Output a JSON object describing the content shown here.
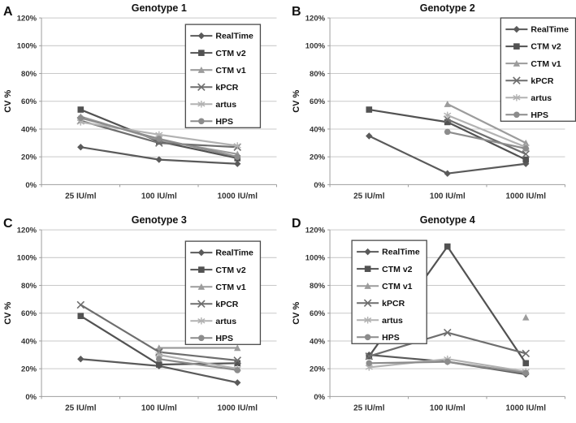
{
  "colors": {
    "background": "#ffffff",
    "gridline": "#c9c9c9",
    "axis": "#9e9e9e",
    "tick_text": "#333333",
    "title_text": "#111111",
    "legend_border": "#4a4a4a",
    "legend_background": "#ffffff"
  },
  "chart_data": [
    {
      "type": "line",
      "panel_label": "A",
      "title": "Genotype 1",
      "ylabel": "CV %",
      "ylim": [
        0,
        120
      ],
      "ytick_step": 20,
      "ytick_suffix": "%",
      "grid": true,
      "legend_position": "top-right",
      "categories": [
        "25 IU/ml",
        "100 IU/ml",
        "1000 IU/ml"
      ],
      "series": [
        {
          "name": "RealTime",
          "marker": "diamond",
          "color": "#5a5a5a",
          "values": [
            27,
            18,
            15
          ]
        },
        {
          "name": "CTM v2",
          "marker": "square",
          "color": "#525252",
          "values": [
            54,
            31,
            19
          ]
        },
        {
          "name": "CTM v1",
          "marker": "triangle",
          "color": "#9c9c9c",
          "values": [
            49,
            32,
            22
          ]
        },
        {
          "name": "kPCR",
          "marker": "x",
          "color": "#6e6e6e",
          "values": [
            46,
            30,
            27
          ]
        },
        {
          "name": "artus",
          "marker": "asterisk",
          "color": "#b2b2b2",
          "values": [
            45,
            36,
            28
          ]
        },
        {
          "name": "HPS",
          "marker": "circle",
          "color": "#8c8c8c",
          "values": [
            48,
            33,
            20
          ]
        }
      ]
    },
    {
      "type": "line",
      "panel_label": "B",
      "title": "Genotype 2",
      "ylabel": "CV %",
      "ylim": [
        0,
        120
      ],
      "ytick_step": 20,
      "ytick_suffix": "%",
      "grid": true,
      "legend_position": "top-right",
      "categories": [
        "25 IU/ml",
        "100 IU/ml",
        "1000 IU/ml"
      ],
      "series": [
        {
          "name": "RealTime",
          "marker": "diamond",
          "color": "#5a5a5a",
          "values": [
            35,
            8,
            15
          ]
        },
        {
          "name": "CTM v2",
          "marker": "square",
          "color": "#525252",
          "values": [
            54,
            45,
            18
          ]
        },
        {
          "name": "CTM v1",
          "marker": "triangle",
          "color": "#9c9c9c",
          "values": [
            null,
            58,
            30
          ]
        },
        {
          "name": "kPCR",
          "marker": "x",
          "color": "#6e6e6e",
          "values": [
            null,
            47,
            22
          ]
        },
        {
          "name": "artus",
          "marker": "asterisk",
          "color": "#b2b2b2",
          "values": [
            null,
            50,
            27
          ]
        },
        {
          "name": "HPS",
          "marker": "circle",
          "color": "#8c8c8c",
          "values": [
            null,
            38,
            26
          ]
        }
      ]
    },
    {
      "type": "line",
      "panel_label": "C",
      "title": "Genotype 3",
      "ylabel": "CV %",
      "ylim": [
        0,
        120
      ],
      "ytick_step": 20,
      "ytick_suffix": "%",
      "grid": true,
      "legend_position": "top-right",
      "categories": [
        "25 IU/ml",
        "100 IU/ml",
        "1000 IU/ml"
      ],
      "series": [
        {
          "name": "RealTime",
          "marker": "diamond",
          "color": "#5a5a5a",
          "values": [
            27,
            22,
            10
          ]
        },
        {
          "name": "CTM v2",
          "marker": "square",
          "color": "#525252",
          "values": [
            58,
            23,
            24
          ]
        },
        {
          "name": "CTM v1",
          "marker": "triangle",
          "color": "#9c9c9c",
          "values": [
            null,
            35,
            35
          ]
        },
        {
          "name": "kPCR",
          "marker": "x",
          "color": "#6e6e6e",
          "values": [
            66,
            32,
            26
          ]
        },
        {
          "name": "artus",
          "marker": "asterisk",
          "color": "#b2b2b2",
          "values": [
            null,
            30,
            20
          ]
        },
        {
          "name": "HPS",
          "marker": "circle",
          "color": "#8c8c8c",
          "values": [
            null,
            27,
            19
          ]
        }
      ]
    },
    {
      "type": "line",
      "panel_label": "D",
      "title": "Genotype 4",
      "ylabel": "CV %",
      "ylim": [
        0,
        120
      ],
      "ytick_step": 20,
      "ytick_suffix": "%",
      "grid": true,
      "legend_position": "top-left",
      "categories": [
        "25 IU/ml",
        "100 IU/ml",
        "1000 IU/ml"
      ],
      "series": [
        {
          "name": "RealTime",
          "marker": "diamond",
          "color": "#5a5a5a",
          "values": [
            30,
            25,
            16
          ]
        },
        {
          "name": "CTM v2",
          "marker": "square",
          "color": "#525252",
          "values": [
            29,
            108,
            24
          ]
        },
        {
          "name": "CTM v1",
          "marker": "triangle",
          "color": "#9c9c9c",
          "values": [
            null,
            null,
            57
          ]
        },
        {
          "name": "kPCR",
          "marker": "x",
          "color": "#6e6e6e",
          "values": [
            29,
            46,
            31
          ]
        },
        {
          "name": "artus",
          "marker": "asterisk",
          "color": "#b2b2b2",
          "values": [
            21,
            27,
            18
          ]
        },
        {
          "name": "HPS",
          "marker": "circle",
          "color": "#8c8c8c",
          "values": [
            24,
            25,
            17
          ]
        }
      ]
    }
  ]
}
